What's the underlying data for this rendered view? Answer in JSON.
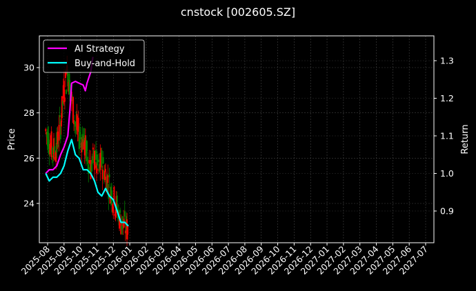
{
  "chart_data": {
    "type": "line",
    "title": "cnstock [002605.SZ]",
    "xlabel": "",
    "ylabel": "Price",
    "ylabel_right": "Return",
    "ylim": [
      22.5,
      31.4
    ],
    "ylim_right": [
      0.82,
      1.365
    ],
    "grid": true,
    "legend_position": "upper left",
    "x_ticks": [
      "2025-08",
      "2025-09",
      "2025-10",
      "2025-11",
      "2025-12",
      "2026-01",
      "2026-02",
      "2026-03",
      "2026-04",
      "2026-05",
      "2026-06",
      "2026-07",
      "2026-08",
      "2026-09",
      "2026-10",
      "2026-11",
      "2026-12",
      "2027-01",
      "2027-02",
      "2027-03",
      "2027-04",
      "2027-05",
      "2027-06",
      "2027-07"
    ],
    "y_ticks_left": [
      24,
      26,
      28,
      30
    ],
    "y_ticks_right": [
      0.9,
      1.0,
      1.1,
      1.2,
      1.3
    ],
    "legend": [
      "AI Strategy",
      "Buy-and-Hold"
    ],
    "candlestick_colors": {
      "up": "#ff0000",
      "down": "#008000"
    },
    "price_series": {
      "name": "Price (candlestick, daily)",
      "x": [
        "2025-07-28",
        "2025-08-04",
        "2025-08-11",
        "2025-08-18",
        "2025-08-25",
        "2025-09-01",
        "2025-09-08",
        "2025-09-15",
        "2025-09-22",
        "2025-09-29",
        "2025-10-06",
        "2025-10-13",
        "2025-10-20",
        "2025-10-27",
        "2025-11-03",
        "2025-11-10",
        "2025-11-17",
        "2025-11-24",
        "2025-12-01",
        "2025-12-08",
        "2025-12-15",
        "2025-12-22",
        "2025-12-29"
      ],
      "values": [
        27.2,
        26.8,
        26.3,
        26.5,
        27.5,
        29.0,
        29.8,
        28.6,
        27.5,
        27.0,
        26.8,
        26.2,
        25.6,
        26.0,
        25.4,
        25.8,
        25.3,
        24.8,
        24.2,
        23.8,
        23.2,
        23.0,
        22.8
      ]
    },
    "series": [
      {
        "name": "AI Strategy",
        "color": "#ff00ff",
        "axis": "right",
        "x": [
          "2025-07-28",
          "2025-08-04",
          "2025-08-11",
          "2025-08-18",
          "2025-08-25",
          "2025-09-01",
          "2025-09-08",
          "2025-09-12",
          "2025-09-15",
          "2025-09-22",
          "2025-09-29",
          "2025-10-06",
          "2025-10-10",
          "2025-10-13",
          "2025-10-20",
          "2025-10-24"
        ],
        "values": [
          1.0,
          1.01,
          1.01,
          1.02,
          1.05,
          1.07,
          1.1,
          1.17,
          1.24,
          1.245,
          1.24,
          1.235,
          1.22,
          1.24,
          1.27,
          1.31
        ]
      },
      {
        "name": "Buy-and-Hold",
        "color": "#00ffff",
        "axis": "right",
        "x": [
          "2025-07-28",
          "2025-08-04",
          "2025-08-11",
          "2025-08-18",
          "2025-08-25",
          "2025-09-01",
          "2025-09-08",
          "2025-09-15",
          "2025-09-22",
          "2025-09-29",
          "2025-10-06",
          "2025-10-13",
          "2025-10-20",
          "2025-10-27",
          "2025-11-03",
          "2025-11-10",
          "2025-11-17",
          "2025-11-24",
          "2025-12-01",
          "2025-12-08",
          "2025-12-15",
          "2025-12-22",
          "2025-12-29"
        ],
        "values": [
          1.0,
          0.98,
          0.99,
          0.99,
          1.0,
          1.02,
          1.06,
          1.09,
          1.05,
          1.04,
          1.01,
          1.01,
          1.0,
          0.98,
          0.95,
          0.94,
          0.96,
          0.94,
          0.93,
          0.9,
          0.87,
          0.87,
          0.86
        ]
      }
    ]
  }
}
